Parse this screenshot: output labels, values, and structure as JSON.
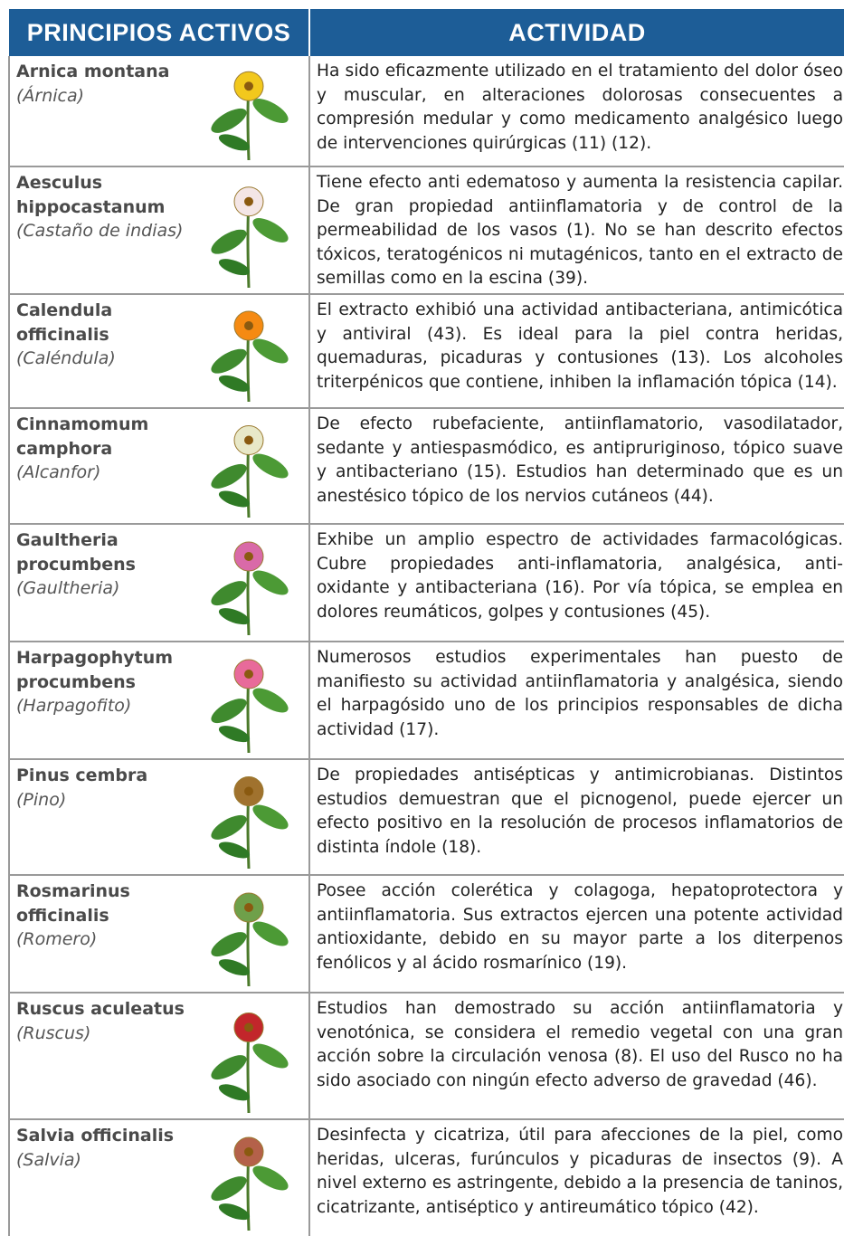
{
  "table": {
    "columns": [
      "PRINCIPIOS ACTIVOS",
      "ACTIVIDAD"
    ],
    "rows": [
      {
        "name": "Arnica montana",
        "common": "(Árnica)",
        "activity": "Ha sido eficazmente utilizado en el tratamiento del dolor óseo y muscular, en alteraciones dolorosas consecuentes a compresión medular y como medicamento analgésico luego de intervenciones quirúrgicas (11) (12)."
      },
      {
        "name": "Aesculus hippocastanum",
        "common": "(Castaño de indias)",
        "activity": "Tiene efecto anti edematoso y aumenta la resistencia capilar. De gran propiedad antiinflamatoria y de control de la permeabilidad de los vasos (1). No se han descrito efectos tóxicos, teratogénicos ni mutagénicos, tanto en el extracto de semillas como en la escina (39)."
      },
      {
        "name": "Calendula officinalis",
        "common": "(Caléndula)",
        "activity": "El extracto exhibió una actividad antibacteriana, antimicótica y antiviral (43). Es ideal para la piel contra heridas, quemaduras, picaduras y contusiones (13). Los alcoholes triterpénicos que contiene, inhiben la inflamación tópica (14)."
      },
      {
        "name": "Cinnamomum camphora",
        "common": "(Alcanfor)",
        "activity": "De efecto rubefaciente, antiinflamatorio, vasodilatador, sedante y antiespasmódico, es antipruriginoso, tópico suave y antibacteriano (15). Estudios han determinado que es un anestésico tópico de los nervios cutáneos (44)."
      },
      {
        "name": "Gaultheria procumbens",
        "common": "(Gaultheria)",
        "activity": "Exhibe un amplio espectro de actividades farmacológicas. Cubre propiedades anti-inflamatoria, analgésica, anti-oxidante y antibacteriana (16). Por vía tópica, se emplea en dolores reumáticos, golpes y contusiones (45)."
      },
      {
        "name": "Harpagophytum procumbens",
        "common": "(Harpagofito)",
        "activity": "Numerosos estudios experimentales han puesto de manifiesto su actividad antiinflamatoria y analgésica, siendo el harpagósido uno de los principios responsables de dicha actividad (17)."
      },
      {
        "name": "Pinus cembra",
        "common": "(Pino)",
        "activity": "De propiedades antisépticas y antimicrobianas. Distintos estudios demuestran que el picnogenol, puede ejercer un efecto positivo en la resolución de procesos inflamatorios de distinta índole (18)."
      },
      {
        "name": "Rosmarinus officinalis",
        "common": "(Romero)",
        "activity": "Posee acción colerética y colagoga, hepatoprotectora y antiinflamatoria. Sus extractos ejercen una potente actividad antioxidante, debido en su mayor parte a los diterpenos fenólicos y al ácido rosmarínico (19)."
      },
      {
        "name": "Ruscus aculeatus",
        "common": "(Ruscus)",
        "activity": "Estudios han demostrado su acción antiinflamatoria y venotónica, se considera el remedio vegetal con una gran acción sobre la circulación venosa (8).  El uso del Rusco no ha sido asociado con ningún efecto adverso de gravedad (46)."
      },
      {
        "name": "Salvia officinalis",
        "common": "(Salvia)",
        "activity": "Desinfecta y cicatriza, útil para afecciones de la piel, como heridas, ulceras, furúnculos y picaduras de insectos (9). A nivel externo es astringente, debido a la presencia de taninos, cicatrizante, antiséptico y antireumático tópico (42)."
      }
    ]
  }
}
